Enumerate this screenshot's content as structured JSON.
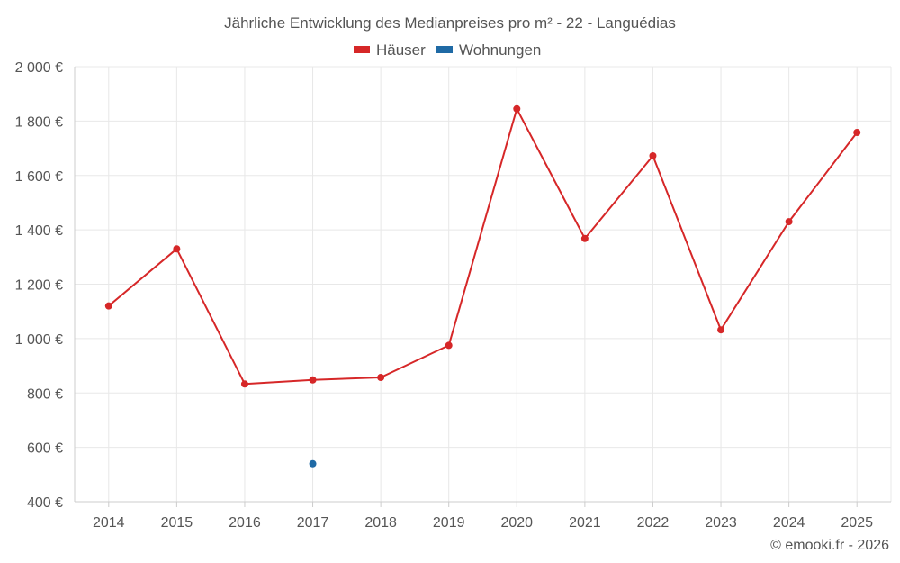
{
  "chart_data": {
    "type": "line",
    "title": "Jährliche Entwicklung des Medianpreises pro m² - 22 - Languédias",
    "categories": [
      "2014",
      "2015",
      "2016",
      "2017",
      "2018",
      "2019",
      "2020",
      "2021",
      "2022",
      "2023",
      "2024",
      "2025"
    ],
    "series": [
      {
        "name": "Häuser",
        "color": "#d62728",
        "values": [
          1120,
          1330,
          833,
          848,
          857,
          975,
          1845,
          1368,
          1672,
          1032,
          1430,
          1758
        ]
      },
      {
        "name": "Wohnungen",
        "color": "#1f6aa5",
        "values": [
          null,
          null,
          null,
          540,
          null,
          null,
          null,
          null,
          null,
          null,
          null,
          null
        ]
      }
    ],
    "ylim": [
      400,
      2000
    ],
    "yticks": [
      400,
      600,
      800,
      1000,
      1200,
      1400,
      1600,
      1800,
      2000
    ],
    "ytick_labels": [
      "400 €",
      "600 €",
      "800 €",
      "1 000 €",
      "1 200 €",
      "1 400 €",
      "1 600 €",
      "1 800 €",
      "2 000 €"
    ],
    "grid": true,
    "legend": "top-center"
  },
  "credit": "© emooki.fr - 2026"
}
